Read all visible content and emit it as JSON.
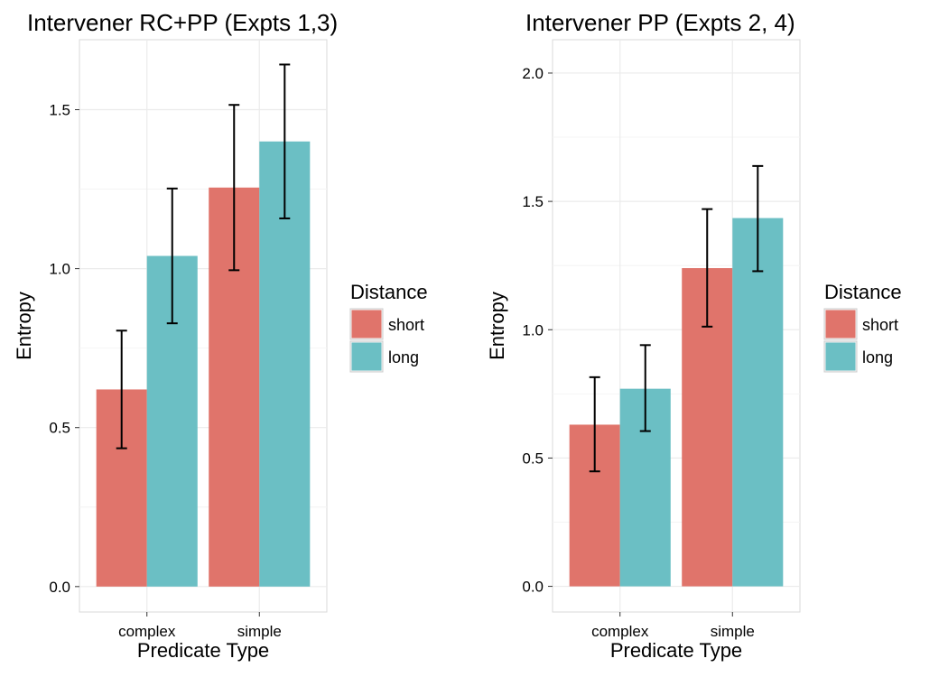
{
  "colors": {
    "short": "#E0746B",
    "long": "#6BBFC4",
    "panel_bg": "#FFFFFF",
    "grid": "#EBEBEB",
    "error_bar": "#000000"
  },
  "chart_data": [
    {
      "type": "bar",
      "title": "Intervener RC+PP (Expts 1,3)",
      "xlabel": "Predicate Type",
      "ylabel": "Entropy",
      "categories": [
        "complex",
        "simple"
      ],
      "ylim": [
        -0.08,
        1.72
      ],
      "yticks": [
        0.0,
        0.5,
        1.0,
        1.5
      ],
      "ytick_labels": [
        "0.0",
        "0.5",
        "1.0",
        "1.5"
      ],
      "legend": {
        "title": "Distance",
        "position": "right",
        "entries": [
          "short",
          "long"
        ]
      },
      "series": [
        {
          "name": "short",
          "values": [
            0.62,
            1.255
          ],
          "err_low": [
            0.435,
            0.995
          ],
          "err_high": [
            0.805,
            1.515
          ]
        },
        {
          "name": "long",
          "values": [
            1.04,
            1.4
          ],
          "err_low": [
            0.828,
            1.158
          ],
          "err_high": [
            1.252,
            1.642
          ]
        }
      ],
      "grid": true
    },
    {
      "type": "bar",
      "title": "Intervener PP (Expts 2, 4)",
      "xlabel": "Predicate Type",
      "ylabel": "Entropy",
      "categories": [
        "complex",
        "simple"
      ],
      "ylim": [
        -0.1,
        2.13
      ],
      "yticks": [
        0.0,
        0.5,
        1.0,
        1.5,
        2.0
      ],
      "ytick_labels": [
        "0.0",
        "0.5",
        "1.0",
        "1.5",
        "2.0"
      ],
      "legend": {
        "title": "Distance",
        "position": "right",
        "entries": [
          "short",
          "long"
        ]
      },
      "series": [
        {
          "name": "short",
          "values": [
            0.63,
            1.24
          ],
          "err_low": [
            0.448,
            1.012
          ],
          "err_high": [
            0.815,
            1.47
          ]
        },
        {
          "name": "long",
          "values": [
            0.77,
            1.435
          ],
          "err_low": [
            0.605,
            1.228
          ],
          "err_high": [
            0.94,
            1.638
          ]
        }
      ],
      "grid": true
    }
  ]
}
